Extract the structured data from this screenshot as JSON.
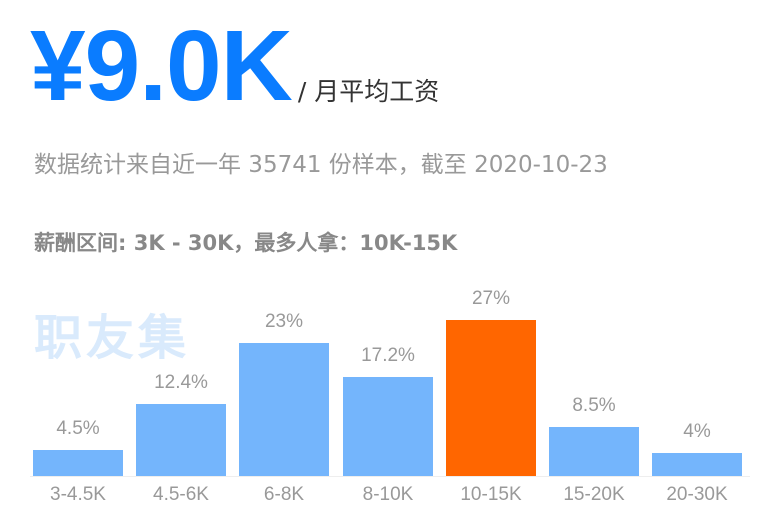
{
  "header": {
    "salary_value": "¥9.0K",
    "salary_unit": "/ 月平均工资",
    "subtitle": "数据统计来自近一年 35741 份样本，截至 2020-10-23",
    "range_text": "薪酬区间: 3K - 30K，最多人拿：10K-15K"
  },
  "watermark": "职友集",
  "colors": {
    "accent": "#0a7cff",
    "bar": "#74b5fc",
    "bar_highlight": "#ff6600",
    "muted_text": "#999999",
    "watermark": "#d9eafc"
  },
  "chart_data": {
    "type": "bar",
    "title": "",
    "xlabel": "",
    "ylabel": "",
    "categories": [
      "3-4.5K",
      "4.5-6K",
      "6-8K",
      "8-10K",
      "10-15K",
      "15-20K",
      "20-30K"
    ],
    "values": [
      4.5,
      12.4,
      23,
      17.2,
      27,
      8.5,
      4
    ],
    "value_labels": [
      "4.5%",
      "12.4%",
      "23%",
      "17.2%",
      "27%",
      "8.5%",
      "4%"
    ],
    "highlight_index": 4,
    "unit": "%",
    "ylim": [
      0,
      27
    ],
    "grid": false,
    "legend": "none"
  }
}
